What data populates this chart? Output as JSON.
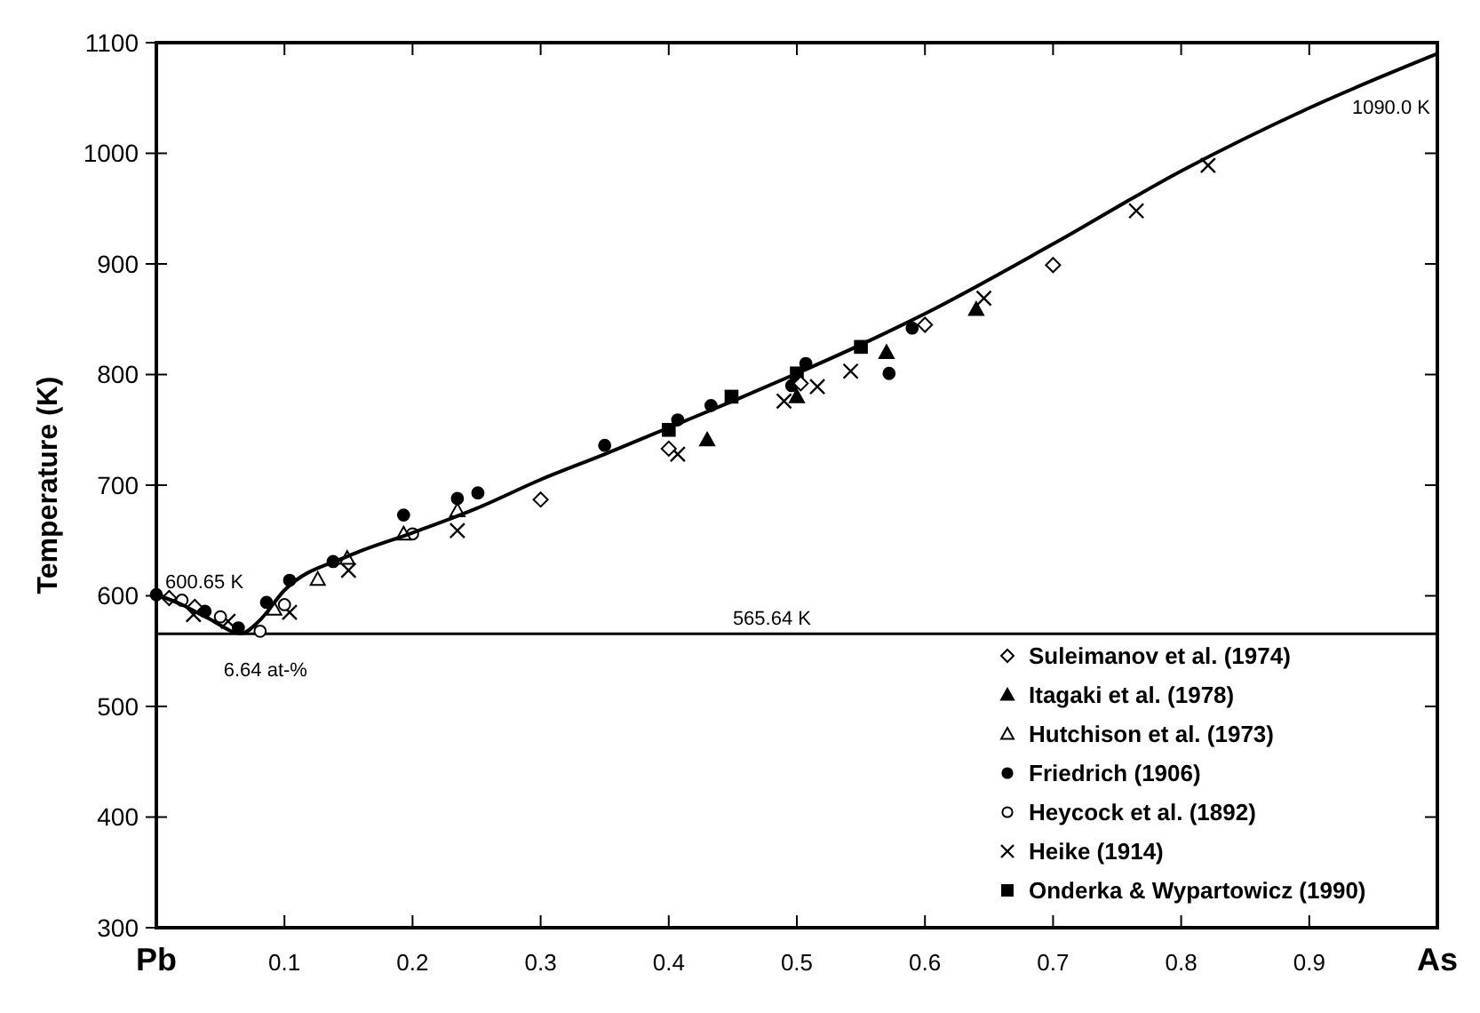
{
  "chart_data": {
    "type": "scatter",
    "ylabel": "Temperature (K)",
    "xlim": [
      0,
      1
    ],
    "xticks": [
      {
        "value": 0,
        "label": "Pb"
      },
      0.1,
      0.2,
      0.3,
      0.4,
      0.5,
      0.6,
      0.7,
      0.8,
      0.9,
      {
        "value": 1,
        "label": "As"
      }
    ],
    "ylim": [
      300,
      1100
    ],
    "yticks": [
      300,
      400,
      500,
      600,
      700,
      800,
      900,
      1000,
      1100
    ],
    "grid": false,
    "legend": "bottom right",
    "ref_lines": [
      {
        "axis": "y",
        "value": 565.64,
        "label": "565.64 K",
        "color": "#000000"
      }
    ],
    "annotations": [
      {
        "text": "600.65 K",
        "x": 0,
        "y": 600.65
      },
      {
        "text": "6.64 at-%",
        "x": 0.0664,
        "y": 565.64
      },
      {
        "text": "1090.0 K",
        "x": 1,
        "y": 1090
      }
    ],
    "series": [
      {
        "type": "line",
        "color": "#000000",
        "marker": "none",
        "line_style": "solid",
        "x": [
          0,
          0.02,
          0.04,
          0.0664,
          0.08,
          0.1,
          0.15,
          0.2,
          0.25,
          0.3,
          0.35,
          0.4,
          0.45,
          0.5,
          0.55,
          0.6,
          0.7,
          0.8,
          0.9,
          1
        ],
        "values": [
          601,
          592,
          580,
          566,
          577,
          605,
          636,
          657,
          679,
          705,
          728,
          752,
          776,
          801,
          827,
          855,
          918,
          984,
          1041,
          1090
        ]
      },
      {
        "name": "Suleimanov  et al. (1974)",
        "color": "#ffffff",
        "marker": "diamond",
        "x": [
          0.01,
          0.03,
          0.3,
          0.4,
          0.503,
          0.6,
          0.7
        ],
        "values": [
          598,
          590,
          687,
          733,
          792,
          845,
          899
        ]
      },
      {
        "name": "Itagaki et al. (1978)",
        "color": "#000000",
        "marker": "triangle",
        "x": [
          0.43,
          0.5,
          0.57,
          0.64
        ],
        "values": [
          741,
          780,
          820,
          859
        ]
      },
      {
        "name": "Hutchison et al. (1973)",
        "color": "#ffffff",
        "marker": "triangle",
        "x": [
          0.092,
          0.126,
          0.149,
          0.193,
          0.235
        ],
        "values": [
          588,
          615,
          634,
          656,
          677
        ]
      },
      {
        "name": "Friedrich (1906)",
        "color": "#000000",
        "marker": "circle",
        "x": [
          0,
          0.038,
          0.064,
          0.086,
          0.104,
          0.138,
          0.193,
          0.235,
          0.251,
          0.35,
          0.407,
          0.433,
          0.496,
          0.507,
          0.572,
          0.59
        ],
        "values": [
          601,
          586,
          571,
          594,
          614,
          631,
          673,
          688,
          693,
          736,
          759,
          772,
          790,
          810,
          801,
          842
        ]
      },
      {
        "name": "Heycock et al. (1892)",
        "color": "#ffffff",
        "marker": "circle",
        "x": [
          0.02,
          0.05,
          0.081,
          0.1,
          0.2
        ],
        "values": [
          596,
          581,
          568,
          592,
          656
        ]
      },
      {
        "name": "Heike (1914)",
        "color": "#000000",
        "marker": "cross",
        "x": [
          0.029,
          0.056,
          0.104,
          0.15,
          0.235,
          0.407,
          0.49,
          0.516,
          0.542,
          0.646,
          0.765,
          0.821
        ],
        "values": [
          583,
          577,
          585,
          623,
          659,
          728,
          776,
          789,
          803,
          869,
          948,
          989
        ]
      },
      {
        "name": "Onderka & Wypartowicz (1990)",
        "color": "#000000",
        "marker": "square",
        "x": [
          0.4,
          0.449,
          0.5,
          0.55
        ],
        "values": [
          750,
          780,
          801,
          825
        ]
      }
    ]
  }
}
